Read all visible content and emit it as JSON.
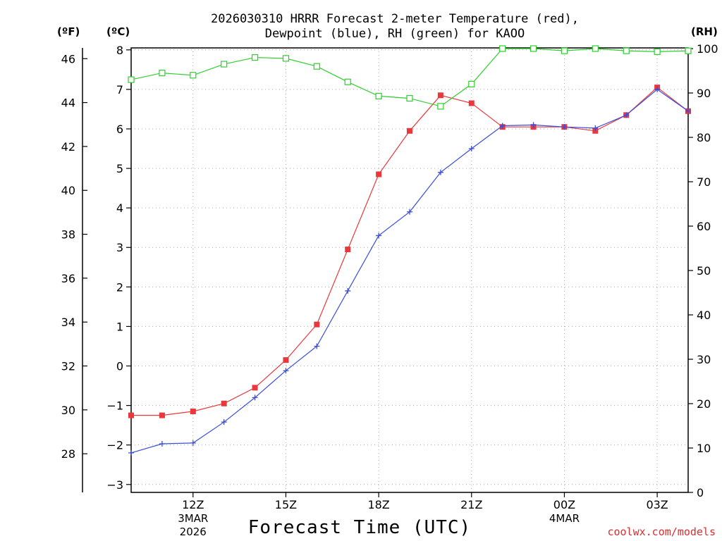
{
  "title_line1": "2026030310 HRRR Forecast 2-meter Temperature (red),",
  "title_line2": "Dewpoint (blue), RH (green) for KAOO",
  "units": {
    "fahrenheit": "(ºF)",
    "celsius": "(ºC)",
    "rh": "(RH)"
  },
  "credit": "coolwx.com/models",
  "colors": {
    "temperature": "#e8383b",
    "dewpoint": "#3a4ddb",
    "rh": "#2ecf2e",
    "grid": "#aaaaaa"
  },
  "chart_data": {
    "type": "line",
    "title": "2026030310 HRRR Forecast 2-meter Temperature (red), Dewpoint (blue), RH (green) for KAOO",
    "xlabel": "Forecast Time (UTC)",
    "ylabel_left_outer": "(ºF)",
    "ylabel_left_inner": "(ºC)",
    "ylabel_right": "(RH)",
    "x": [
      0,
      1,
      2,
      3,
      4,
      5,
      6,
      7,
      8,
      9,
      10,
      11,
      12,
      13,
      14,
      15,
      16,
      17,
      18
    ],
    "xlim": [
      0,
      18
    ],
    "x_ticks": [
      {
        "x": 2,
        "label": "12Z",
        "sub1": "3MAR",
        "sub2": "2026"
      },
      {
        "x": 5,
        "label": "15Z",
        "sub1": "",
        "sub2": ""
      },
      {
        "x": 8,
        "label": "18Z",
        "sub1": "",
        "sub2": ""
      },
      {
        "x": 11,
        "label": "21Z",
        "sub1": "",
        "sub2": ""
      },
      {
        "x": 14,
        "label": "00Z",
        "sub1": "4MAR",
        "sub2": ""
      },
      {
        "x": 17,
        "label": "03Z",
        "sub1": "",
        "sub2": ""
      }
    ],
    "ylim_c": [
      -3.2,
      8.05
    ],
    "y_ticks_c": [
      "-3",
      "-2",
      "-1",
      "0",
      "1",
      "2",
      "3",
      "4",
      "5",
      "6",
      "7",
      "8"
    ],
    "y_ticks_f": [
      "28",
      "30",
      "32",
      "34",
      "36",
      "38",
      "40",
      "42",
      "44",
      "46"
    ],
    "y_ticks_rh": [
      "0",
      "10",
      "20",
      "30",
      "40",
      "50",
      "60",
      "70",
      "80",
      "90",
      "100"
    ],
    "grid": true,
    "series": [
      {
        "name": "Temperature",
        "color": "#e8383b",
        "marker": "square-filled",
        "values": [
          -1.25,
          -1.25,
          -1.15,
          -0.95,
          -0.55,
          0.15,
          1.05,
          2.95,
          4.85,
          5.95,
          6.85,
          6.65,
          6.05,
          6.05,
          6.05,
          5.95,
          6.35,
          7.05,
          6.45
        ]
      },
      {
        "name": "Dewpoint",
        "color": "#3a4ddb",
        "marker": "plus",
        "values": [
          -2.2,
          -1.97,
          -1.95,
          -1.42,
          -0.8,
          -0.12,
          0.5,
          1.9,
          3.3,
          3.9,
          4.9,
          5.5,
          6.08,
          6.1,
          6.05,
          6.02,
          6.35,
          7.0,
          6.45
        ]
      },
      {
        "name": "RH",
        "color": "#2ecf2e",
        "marker": "square-open",
        "axis": "right",
        "values": [
          93,
          94.5,
          94,
          96.5,
          98,
          97.8,
          96,
          92.5,
          89.3,
          88.8,
          87,
          92,
          100,
          100,
          99.5,
          100,
          99.5,
          99.3,
          99.5
        ]
      }
    ]
  }
}
